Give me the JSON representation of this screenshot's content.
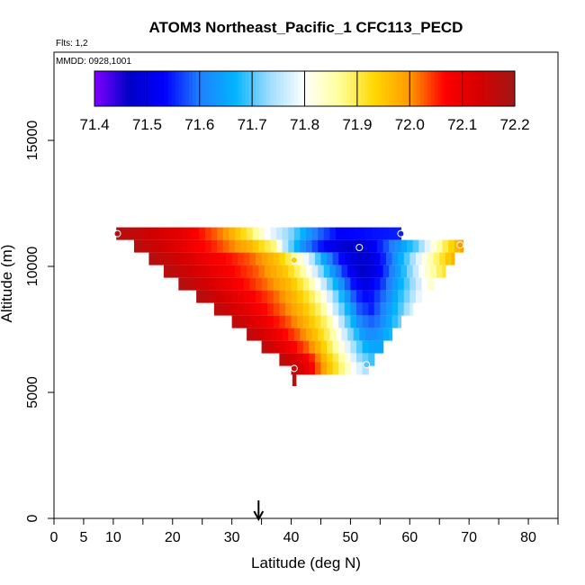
{
  "chart_data": {
    "type": "heatmap",
    "title": "ATOM3 Northeast_Pacific_1 CFC113_PECD",
    "flights_note": "Flts: 1,2",
    "mmdd_note": "MMDD: 0928,1001",
    "xlabel": "Latitude (deg N)",
    "ylabel": "Altitude (m)",
    "xlim": [
      0,
      85
    ],
    "ylim": [
      0,
      18500
    ],
    "x_ticks": [
      0,
      5,
      10,
      20,
      30,
      40,
      50,
      60,
      70,
      80
    ],
    "y_ticks": [
      0,
      5000,
      10000,
      15000
    ],
    "colorbar": {
      "min": 71.4,
      "max": 72.2,
      "tick_labels": [
        "71.4",
        "71.5",
        "71.6",
        "71.7",
        "71.8",
        "71.9",
        "72.0",
        "72.1",
        "72.2"
      ]
    },
    "marker_latitude": 34.5,
    "grid": false,
    "rows": [
      {
        "alt": 11300,
        "lat_start": 10.5,
        "lat_end": 58.5,
        "anchors": [
          [
            10,
            72.18
          ],
          [
            22,
            72.1
          ],
          [
            29,
            72.0
          ],
          [
            33,
            71.9
          ],
          [
            36,
            71.8
          ],
          [
            40,
            71.72
          ],
          [
            44,
            71.6
          ],
          [
            48,
            71.53
          ],
          [
            58.5,
            71.55
          ]
        ]
      },
      {
        "alt": 10800,
        "lat_start": 13.5,
        "lat_end": 69,
        "anchors": [
          [
            13,
            72.18
          ],
          [
            20,
            72.12
          ],
          [
            27,
            72.05
          ],
          [
            33,
            71.97
          ],
          [
            37,
            71.88
          ],
          [
            39,
            71.75
          ],
          [
            42,
            71.62
          ],
          [
            46,
            71.52
          ],
          [
            50,
            71.47
          ],
          [
            53,
            71.5
          ],
          [
            57,
            71.6
          ],
          [
            61,
            71.7
          ],
          [
            63.5,
            71.8
          ],
          [
            66,
            71.9
          ],
          [
            69,
            72.0
          ]
        ]
      },
      {
        "alt": 10300,
        "lat_start": 16,
        "lat_end": 67.5,
        "anchors": [
          [
            16,
            72.18
          ],
          [
            25,
            72.1
          ],
          [
            33,
            72.03
          ],
          [
            38,
            71.95
          ],
          [
            41,
            71.85
          ],
          [
            43.5,
            71.75
          ],
          [
            46,
            71.62
          ],
          [
            49,
            71.52
          ],
          [
            52,
            71.47
          ],
          [
            54,
            71.5
          ],
          [
            57,
            71.6
          ],
          [
            60,
            71.72
          ],
          [
            62.5,
            71.82
          ],
          [
            65,
            71.9
          ],
          [
            67.5,
            71.98
          ]
        ]
      },
      {
        "alt": 9800,
        "lat_start": 18.5,
        "lat_end": 66,
        "anchors": [
          [
            18,
            72.18
          ],
          [
            27,
            72.1
          ],
          [
            34,
            72.03
          ],
          [
            39,
            71.95
          ],
          [
            42,
            71.86
          ],
          [
            44.5,
            71.75
          ],
          [
            47,
            71.63
          ],
          [
            50,
            71.52
          ],
          [
            52,
            71.47
          ],
          [
            54,
            71.5
          ],
          [
            57,
            71.6
          ],
          [
            60,
            71.72
          ],
          [
            62.5,
            71.82
          ],
          [
            66,
            71.92
          ]
        ]
      },
      {
        "alt": 9300,
        "lat_start": 21,
        "lat_end": 64,
        "anchors": [
          [
            21,
            72.18
          ],
          [
            29,
            72.1
          ],
          [
            35,
            72.03
          ],
          [
            40,
            71.96
          ],
          [
            43,
            71.87
          ],
          [
            45.5,
            71.76
          ],
          [
            48,
            71.64
          ],
          [
            50.5,
            71.54
          ],
          [
            52.5,
            71.5
          ],
          [
            55,
            71.55
          ],
          [
            58,
            71.65
          ],
          [
            61,
            71.75
          ],
          [
            64,
            71.85
          ]
        ]
      },
      {
        "alt": 8800,
        "lat_start": 24,
        "lat_end": 62,
        "anchors": [
          [
            24,
            72.18
          ],
          [
            31,
            72.1
          ],
          [
            37,
            72.03
          ],
          [
            41,
            71.96
          ],
          [
            44,
            71.88
          ],
          [
            46.5,
            71.77
          ],
          [
            49,
            71.65
          ],
          [
            51,
            71.56
          ],
          [
            53,
            71.53
          ],
          [
            56,
            71.6
          ],
          [
            59,
            71.7
          ],
          [
            62,
            71.8
          ]
        ]
      },
      {
        "alt": 8300,
        "lat_start": 27,
        "lat_end": 60.5,
        "anchors": [
          [
            27,
            72.17
          ],
          [
            33,
            72.1
          ],
          [
            38,
            72.03
          ],
          [
            42,
            71.96
          ],
          [
            45,
            71.88
          ],
          [
            47,
            71.78
          ],
          [
            49.5,
            71.67
          ],
          [
            51.5,
            71.58
          ],
          [
            53.5,
            71.55
          ],
          [
            56,
            71.62
          ],
          [
            58.5,
            71.7
          ],
          [
            60.5,
            71.78
          ]
        ]
      },
      {
        "alt": 7800,
        "lat_start": 30,
        "lat_end": 58.5,
        "anchors": [
          [
            30,
            72.17
          ],
          [
            35,
            72.1
          ],
          [
            39.5,
            72.03
          ],
          [
            43,
            71.96
          ],
          [
            46,
            71.88
          ],
          [
            48,
            71.78
          ],
          [
            50,
            71.68
          ],
          [
            52,
            71.6
          ],
          [
            54,
            71.58
          ],
          [
            56.5,
            71.65
          ],
          [
            58.5,
            71.72
          ]
        ]
      },
      {
        "alt": 7300,
        "lat_start": 32.5,
        "lat_end": 57,
        "anchors": [
          [
            32.5,
            72.17
          ],
          [
            37,
            72.1
          ],
          [
            41,
            72.03
          ],
          [
            44,
            71.96
          ],
          [
            46.5,
            71.88
          ],
          [
            48.5,
            71.79
          ],
          [
            50.5,
            71.7
          ],
          [
            52.5,
            71.62
          ],
          [
            54.5,
            71.62
          ],
          [
            57,
            71.68
          ]
        ]
      },
      {
        "alt": 6800,
        "lat_start": 35,
        "lat_end": 55.5,
        "anchors": [
          [
            35,
            72.17
          ],
          [
            39,
            72.1
          ],
          [
            42.5,
            72.03
          ],
          [
            45,
            71.96
          ],
          [
            47,
            71.88
          ],
          [
            49,
            71.8
          ],
          [
            51,
            71.72
          ],
          [
            53,
            71.65
          ],
          [
            55.5,
            71.65
          ]
        ]
      },
      {
        "alt": 6300,
        "lat_start": 38,
        "lat_end": 54,
        "anchors": [
          [
            38,
            72.17
          ],
          [
            41,
            72.12
          ],
          [
            43.5,
            72.05
          ],
          [
            45.5,
            71.97
          ],
          [
            47.5,
            71.9
          ],
          [
            49.5,
            71.82
          ],
          [
            51.5,
            71.73
          ],
          [
            54,
            71.68
          ]
        ]
      },
      {
        "alt": 5950,
        "lat_start": 40,
        "lat_end": 53,
        "anchors": [
          [
            40,
            72.17
          ],
          [
            42,
            72.12
          ],
          [
            44,
            72.05
          ],
          [
            46,
            71.97
          ],
          [
            48,
            71.9
          ],
          [
            50,
            71.82
          ],
          [
            53,
            71.73
          ]
        ]
      },
      {
        "alt": 5500,
        "lat_start": 40.2,
        "lat_end": 40.8,
        "anchors": [
          [
            40,
            72.18
          ],
          [
            41,
            72.18
          ]
        ]
      }
    ],
    "sample_points": [
      {
        "lat": 10.7,
        "alt": 11300,
        "value": 72.18
      },
      {
        "lat": 51.5,
        "alt": 10750,
        "value": 71.47
      },
      {
        "lat": 58.5,
        "alt": 11300,
        "value": 71.55
      },
      {
        "lat": 40.5,
        "alt": 10250,
        "value": 71.95
      },
      {
        "lat": 68.5,
        "alt": 10850,
        "value": 72.0
      },
      {
        "lat": 40.5,
        "alt": 5950,
        "value": 72.15
      },
      {
        "lat": 52.7,
        "alt": 6100,
        "value": 71.7
      }
    ]
  },
  "colors": {
    "colormap": [
      "#7f00ff",
      "#0000c8",
      "#0000ff",
      "#2080ff",
      "#00b4ff",
      "#a0dcff",
      "#ffffff",
      "#ffff99",
      "#ffd700",
      "#ff9900",
      "#ff0000",
      "#d40000",
      "#a01818"
    ]
  }
}
